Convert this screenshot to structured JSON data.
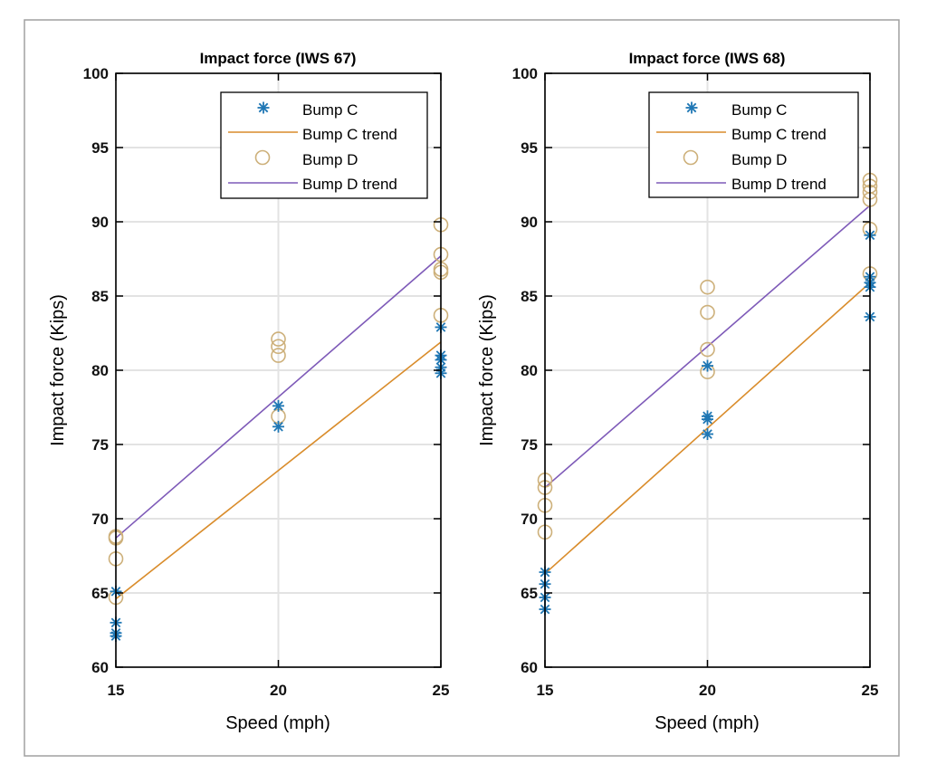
{
  "colors": {
    "bump_c": "#1F77B4",
    "bump_c_trend": "#D98C2B",
    "bump_d": "#CDB07A",
    "bump_d_trend": "#7E5AB8",
    "grid": "#E3E3E3",
    "frame": "#A0A0A0"
  },
  "icons": {
    "bump_c_marker": "asterisk-icon",
    "bump_d_marker": "circle-icon"
  },
  "chart_data": [
    {
      "type": "scatter",
      "title": "Impact force (IWS 67)",
      "xlabel": "Speed (mph)",
      "ylabel": "Impact force (Kips)",
      "xlim": [
        15,
        25
      ],
      "ylim": [
        60,
        100
      ],
      "xticks": [
        "15",
        "20",
        "25"
      ],
      "yticks": [
        "60",
        "65",
        "70",
        "75",
        "80",
        "85",
        "90",
        "95",
        "100"
      ],
      "grid": true,
      "legend_position": "top-right",
      "legend": [
        "Bump C",
        "Bump C trend",
        "Bump D",
        "Bump D trend"
      ],
      "series": [
        {
          "name": "Bump C",
          "kind": "marker-asterisk",
          "points": [
            [
              15,
              65.1
            ],
            [
              15,
              63.0
            ],
            [
              15,
              62.3
            ],
            [
              15,
              62.1
            ],
            [
              20,
              77.6
            ],
            [
              20,
              76.2
            ],
            [
              25,
              82.9
            ],
            [
              25,
              81.0
            ],
            [
              25,
              80.7
            ],
            [
              25,
              80.2
            ],
            [
              25,
              79.8
            ]
          ]
        },
        {
          "name": "Bump C trend",
          "kind": "line",
          "points": [
            [
              15,
              64.6
            ],
            [
              25,
              81.9
            ]
          ]
        },
        {
          "name": "Bump D",
          "kind": "marker-circle",
          "points": [
            [
              15,
              68.8
            ],
            [
              15,
              68.7
            ],
            [
              15,
              67.3
            ],
            [
              15,
              64.7
            ],
            [
              20,
              82.1
            ],
            [
              20,
              81.6
            ],
            [
              20,
              81.0
            ],
            [
              20,
              76.9
            ],
            [
              25,
              89.8
            ],
            [
              25,
              87.8
            ],
            [
              25,
              86.8
            ],
            [
              25,
              86.6
            ],
            [
              25,
              83.7
            ]
          ]
        },
        {
          "name": "Bump D trend",
          "kind": "line",
          "points": [
            [
              15,
              68.7
            ],
            [
              25,
              87.7
            ]
          ]
        }
      ]
    },
    {
      "type": "scatter",
      "title": "Impact force (IWS 68)",
      "xlabel": "Speed (mph)",
      "ylabel": "Impact force (Kips)",
      "xlim": [
        15,
        25
      ],
      "ylim": [
        60,
        100
      ],
      "xticks": [
        "15",
        "20",
        "25"
      ],
      "yticks": [
        "60",
        "65",
        "70",
        "75",
        "80",
        "85",
        "90",
        "95",
        "100"
      ],
      "grid": true,
      "legend_position": "top-right",
      "legend": [
        "Bump C",
        "Bump C trend",
        "Bump D",
        "Bump D trend"
      ],
      "series": [
        {
          "name": "Bump C",
          "kind": "marker-asterisk",
          "points": [
            [
              15,
              66.4
            ],
            [
              15,
              65.6
            ],
            [
              15,
              64.7
            ],
            [
              15,
              63.9
            ],
            [
              20,
              80.3
            ],
            [
              20,
              76.9
            ],
            [
              20,
              76.7
            ],
            [
              20,
              75.7
            ],
            [
              25,
              89.1
            ],
            [
              25,
              86.3
            ],
            [
              25,
              85.9
            ],
            [
              25,
              85.6
            ],
            [
              25,
              83.6
            ]
          ]
        },
        {
          "name": "Bump C trend",
          "kind": "line",
          "points": [
            [
              15,
              66.3
            ],
            [
              25,
              85.9
            ]
          ]
        },
        {
          "name": "Bump D",
          "kind": "marker-circle",
          "points": [
            [
              15,
              72.6
            ],
            [
              15,
              72.1
            ],
            [
              15,
              70.9
            ],
            [
              15,
              69.1
            ],
            [
              20,
              85.6
            ],
            [
              20,
              83.9
            ],
            [
              20,
              81.4
            ],
            [
              20,
              79.9
            ],
            [
              25,
              92.8
            ],
            [
              25,
              92.4
            ],
            [
              25,
              92.0
            ],
            [
              25,
              91.5
            ],
            [
              25,
              89.5
            ],
            [
              25,
              86.5
            ]
          ]
        },
        {
          "name": "Bump D trend",
          "kind": "line",
          "points": [
            [
              15,
              72.1
            ],
            [
              25,
              91.1
            ]
          ]
        }
      ]
    }
  ]
}
